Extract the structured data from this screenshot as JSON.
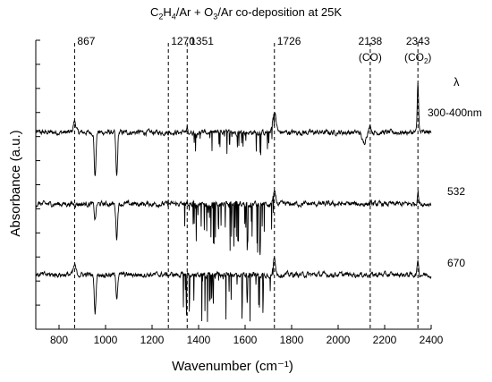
{
  "chart_data": {
    "type": "line",
    "title_parts": [
      "C",
      "2",
      "H",
      "4",
      "/Ar + O",
      "3",
      "/Ar co-deposition at 25K"
    ],
    "xlabel": "Wavenumber (cm⁻¹)",
    "ylabel": "Absorbance (a.u.)",
    "xlim": [
      700,
      2400
    ],
    "x_ticks": [
      800,
      1000,
      1200,
      1400,
      1600,
      1800,
      2000,
      2200,
      2400
    ],
    "y_ticks_labeled": false,
    "grid": false,
    "reference_lines": [
      {
        "x": 867,
        "label": "867",
        "sublabel": ""
      },
      {
        "x": 1270,
        "label": "1270",
        "sublabel": ""
      },
      {
        "x": 1351,
        "label": "1351",
        "sublabel": ""
      },
      {
        "x": 1726,
        "label": "1726",
        "sublabel": ""
      },
      {
        "x": 2138,
        "label": "2138",
        "sublabel": "(CO)"
      },
      {
        "x": 2343,
        "label": "2343",
        "sublabel_parts": [
          "(CO",
          "2",
          ")"
        ]
      }
    ],
    "lambda_header": "λ",
    "series": [
      {
        "name": "300-400nm",
        "baseline": 0.0,
        "features": [
          {
            "x": 867,
            "a": 0.25,
            "w": 8
          },
          {
            "x": 955,
            "a": -1.0,
            "w": 5
          },
          {
            "x": 1048,
            "a": -1.0,
            "w": 5
          },
          {
            "x": 1351,
            "a": 0.12,
            "w": 3
          },
          {
            "x": 1726,
            "a": 0.45,
            "w": 10
          },
          {
            "x": 2110,
            "a": -0.25,
            "w": 10
          },
          {
            "x": 2138,
            "a": 0.15,
            "w": 6
          },
          {
            "x": 2343,
            "a": 1.15,
            "w": 4
          }
        ]
      },
      {
        "name": "532",
        "baseline": -1.6,
        "features": [
          {
            "x": 955,
            "a": -0.35,
            "w": 5
          },
          {
            "x": 1048,
            "a": -0.75,
            "w": 5
          },
          {
            "x": 1726,
            "a": 0.25,
            "w": 8
          },
          {
            "x": 2343,
            "a": 0.3,
            "w": 4
          }
        ]
      },
      {
        "name": "670",
        "baseline": -3.2,
        "features": [
          {
            "x": 867,
            "a": 0.2,
            "w": 8
          },
          {
            "x": 955,
            "a": -0.85,
            "w": 5
          },
          {
            "x": 1048,
            "a": -0.5,
            "w": 5
          },
          {
            "x": 1726,
            "a": 0.35,
            "w": 8
          },
          {
            "x": 2343,
            "a": 0.35,
            "w": 4
          }
        ]
      }
    ]
  }
}
